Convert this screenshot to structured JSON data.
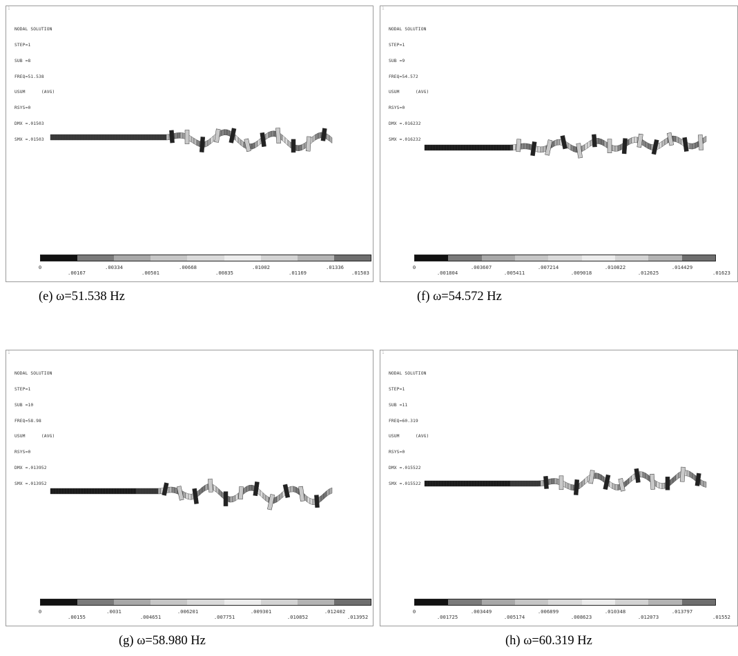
{
  "colormap": [
    "#111111",
    "#7a7a7a",
    "#a8a8a8",
    "#c6c6c6",
    "#dadada",
    "#ececec",
    "#d3d3d3",
    "#b3b3b3",
    "#6e6e6e"
  ],
  "panels": [
    {
      "header": [
        "NODAL SOLUTION",
        "STEP=1",
        "SUB =8",
        "FREQ=51.538",
        "USUM      (AVG)",
        "RSYS=0",
        "DMX =.01503",
        "SMX =.01503"
      ],
      "ticks_top": [
        ".00334",
        ".00668",
        ".01002",
        ".01336"
      ],
      "ticks_bottom": [
        "0",
        ".00167",
        ".00501",
        ".00835",
        ".01169",
        ".01503"
      ],
      "caption": "(e) ω=51.538 Hz"
    },
    {
      "header": [
        "NODAL SOLUTION",
        "STEP=1",
        "SUB =9",
        "FREQ=54.572",
        "USUM      (AVG)",
        "RSYS=0",
        "DMX =.016232",
        "SMX =.016232"
      ],
      "ticks_top": [
        ".003607",
        ".007214",
        ".010822",
        ".014429"
      ],
      "ticks_bottom": [
        "0",
        ".001804",
        ".005411",
        ".009018",
        ".012625",
        ".01623"
      ],
      "caption": "(f) ω=54.572 Hz"
    },
    {
      "header": [
        "NODAL SOLUTION",
        "STEP=1",
        "SUB =10",
        "FREQ=58.98",
        "USUM      (AVG)",
        "RSYS=0",
        "DMX =.013952",
        "SMX =.013952"
      ],
      "ticks_top": [
        ".0031",
        ".006201",
        ".009301",
        ".012402"
      ],
      "ticks_bottom": [
        "0",
        ".00155",
        ".004651",
        ".007751",
        ".010852",
        ".013952"
      ],
      "caption": "(g) ω=58.980 Hz"
    },
    {
      "header": [
        "NODAL SOLUTION",
        "STEP=1",
        "SUB =11",
        "FREQ=60.319",
        "USUM      (AVG)",
        "RSYS=0",
        "DMX =.015522",
        "SMX =.015522"
      ],
      "ticks_top": [
        ".003449",
        ".006899",
        ".010348",
        ".013797"
      ],
      "ticks_bottom": [
        "0",
        ".001725",
        ".005174",
        ".008623",
        ".012073",
        ".01552"
      ],
      "caption": "(h) ω=60.319 Hz"
    }
  ]
}
